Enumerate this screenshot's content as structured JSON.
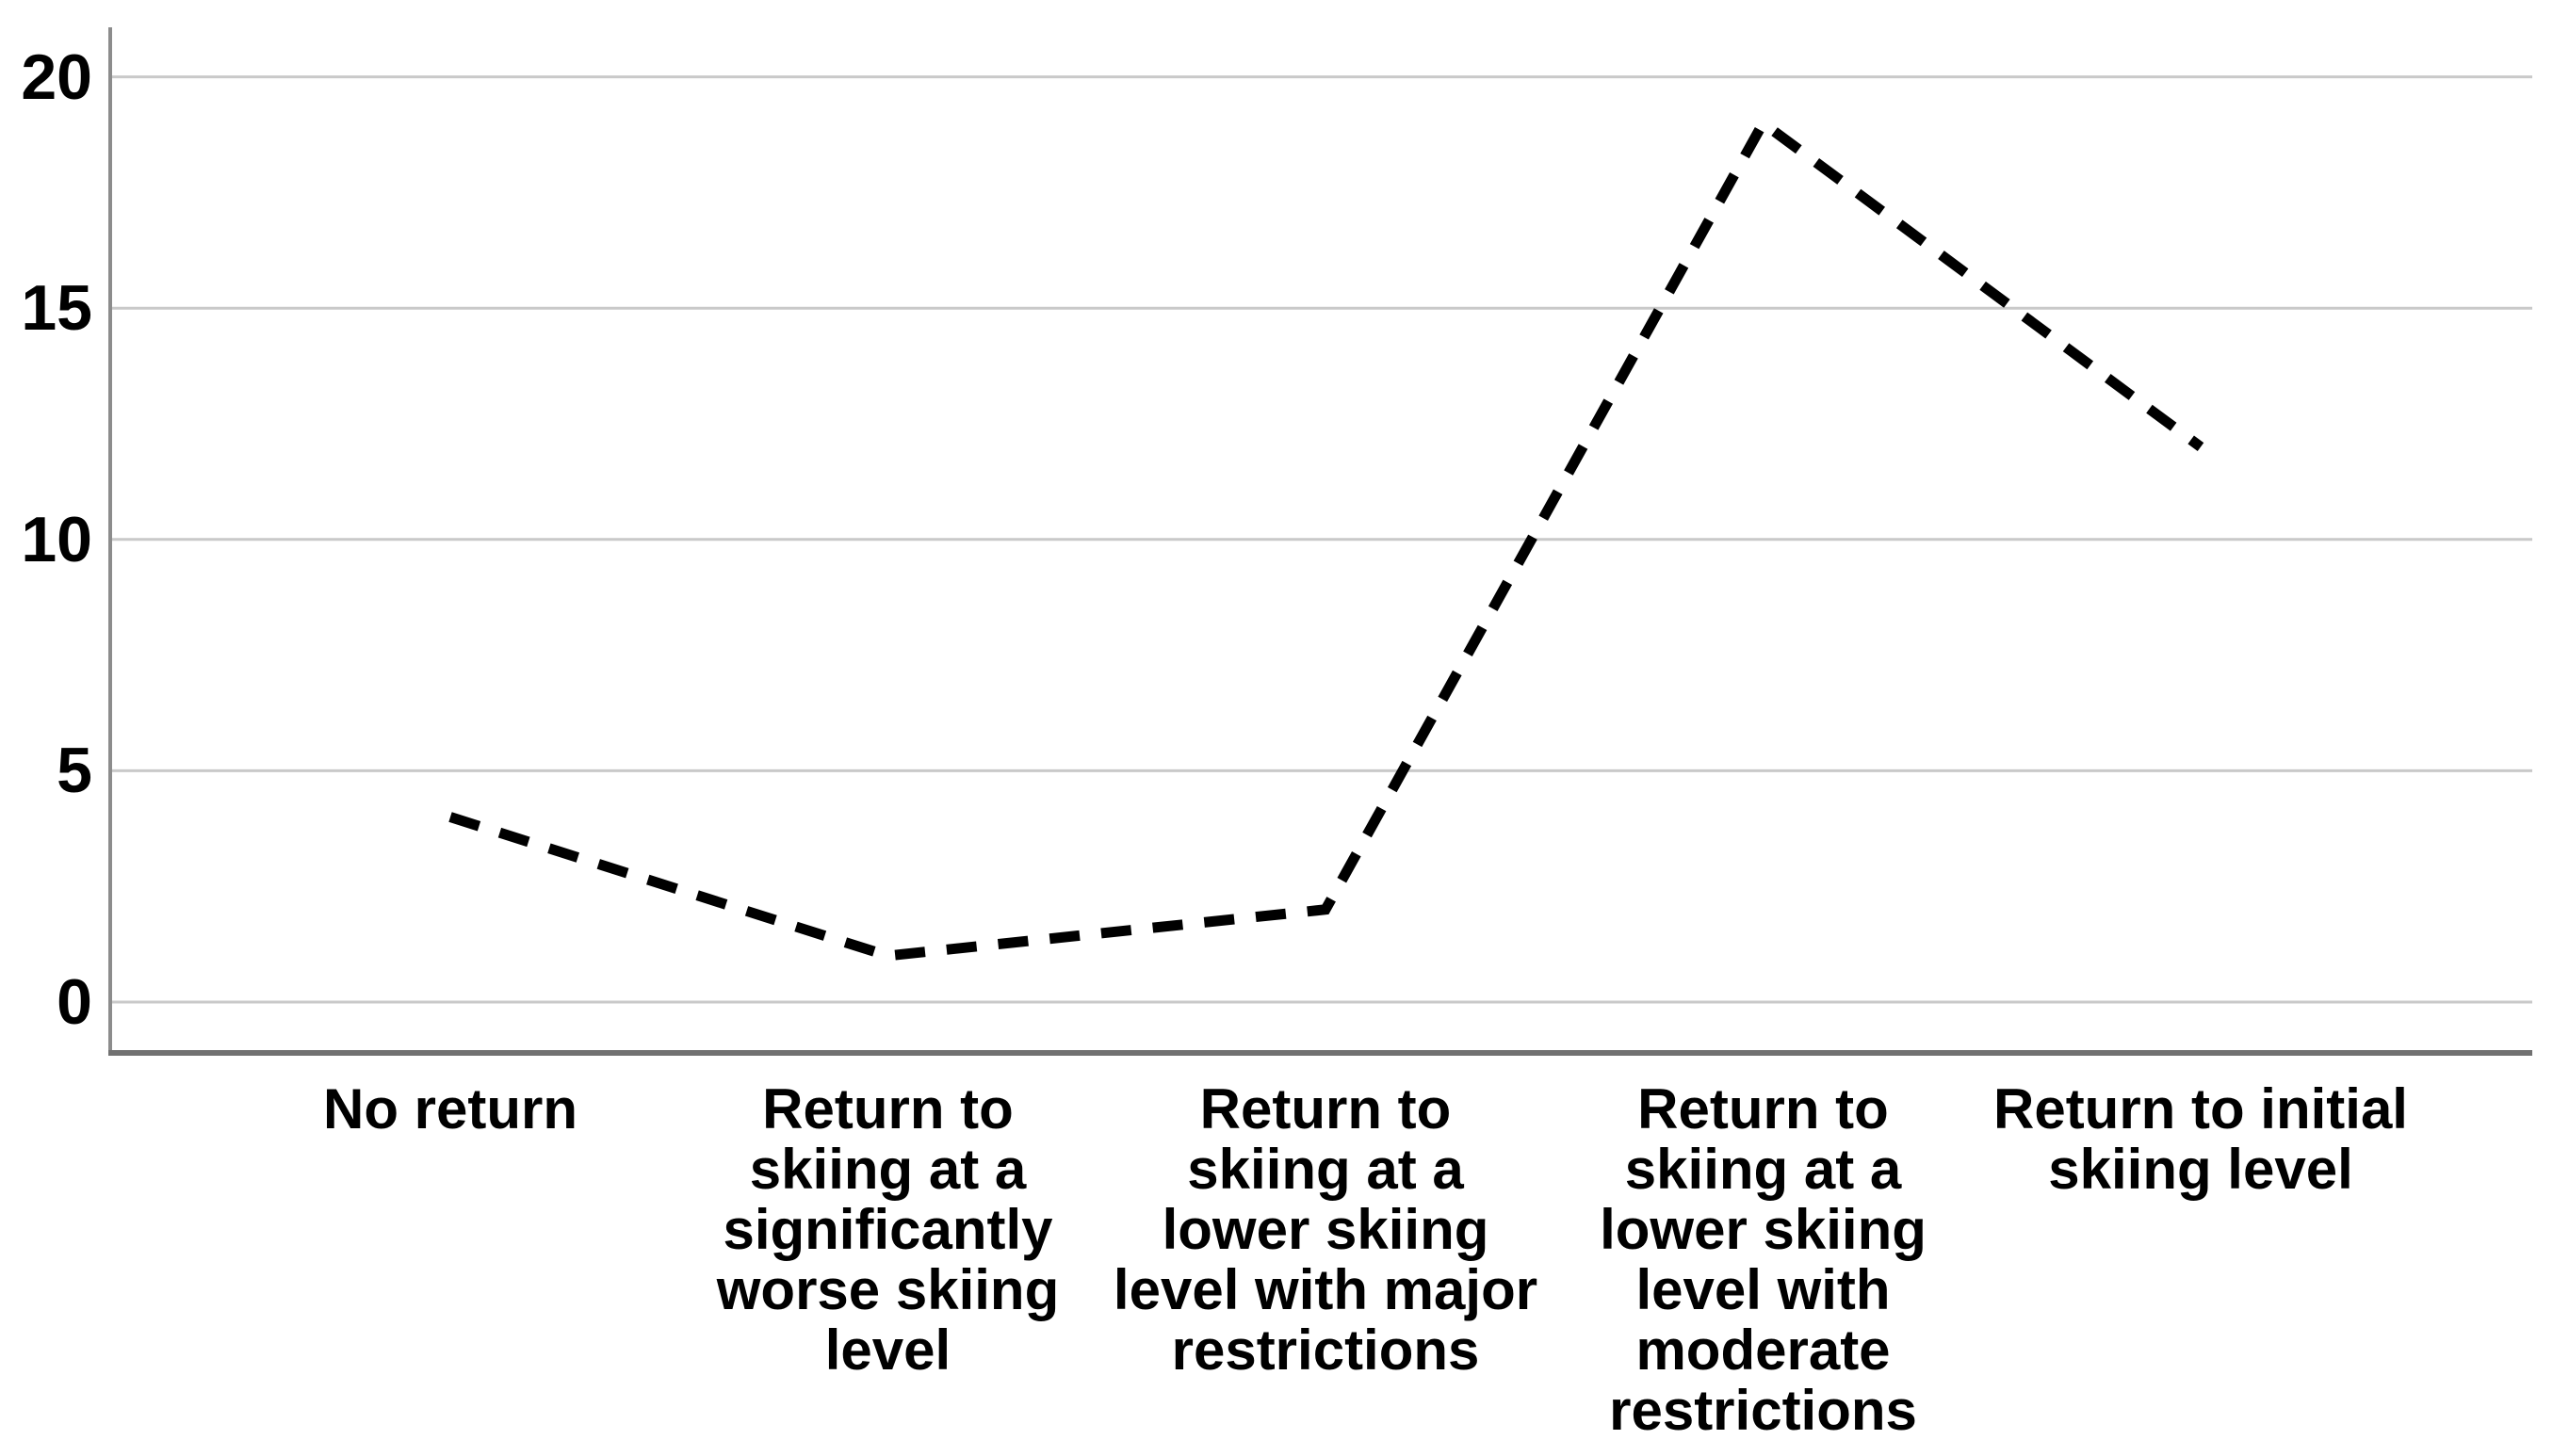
{
  "chart_data": {
    "type": "line",
    "title": "",
    "xlabel": "",
    "ylabel": "",
    "categories": [
      "No return",
      "Return to skiing at a significantly worse skiing level",
      "Return to skiing at a lower skiing level with major restrictions",
      "Return to skiing at a lower skiing level with moderate restrictions",
      "Return to initial skiing level"
    ],
    "categories_wrapped": [
      "No return",
      "Return to\nskiing at a\nsignificantly\nworse skiing\nlevel",
      "Return to\nskiing at a\nlower skiing\nlevel with major\nrestrictions",
      "Return to\nskiing at a\nlower skiing\nlevel with\nmoderate\nrestrictions",
      "Return to initial\nskiing level"
    ],
    "values": [
      4,
      1,
      2,
      19,
      12
    ],
    "yticks": [
      0,
      5,
      10,
      15,
      20
    ],
    "ylim": [
      0,
      20
    ],
    "grid": "horizontal-only",
    "legend": "none",
    "line_style": "dashed",
    "line_color": "#000000",
    "gridline_color": "#c9c9c9",
    "y_axis_line_color": "#8c8c8c",
    "baseline_color": "#717171",
    "text_color": "#000000",
    "background_color": "#ffffff"
  }
}
